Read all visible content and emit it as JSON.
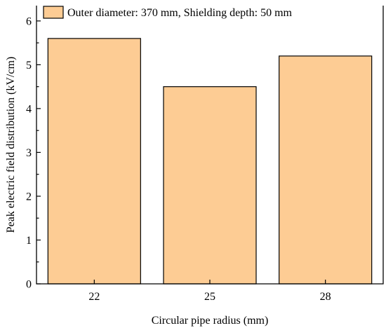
{
  "chart_data": {
    "type": "bar",
    "title": "",
    "xlabel": "Circular pipe radius (mm)",
    "ylabel": "Peak electric field distribution (kV/cm)",
    "categories": [
      "22",
      "25",
      "28"
    ],
    "series": [
      {
        "name": "Outer diameter: 370 mm, Shielding depth: 50 mm",
        "values": [
          5.6,
          4.5,
          5.2
        ]
      }
    ],
    "ylim": [
      0,
      6.35
    ],
    "yticks": [
      0,
      1,
      2,
      3,
      4,
      5,
      6
    ],
    "grid": false,
    "legend": "top-left",
    "bar_color": "#fdcc94"
  }
}
